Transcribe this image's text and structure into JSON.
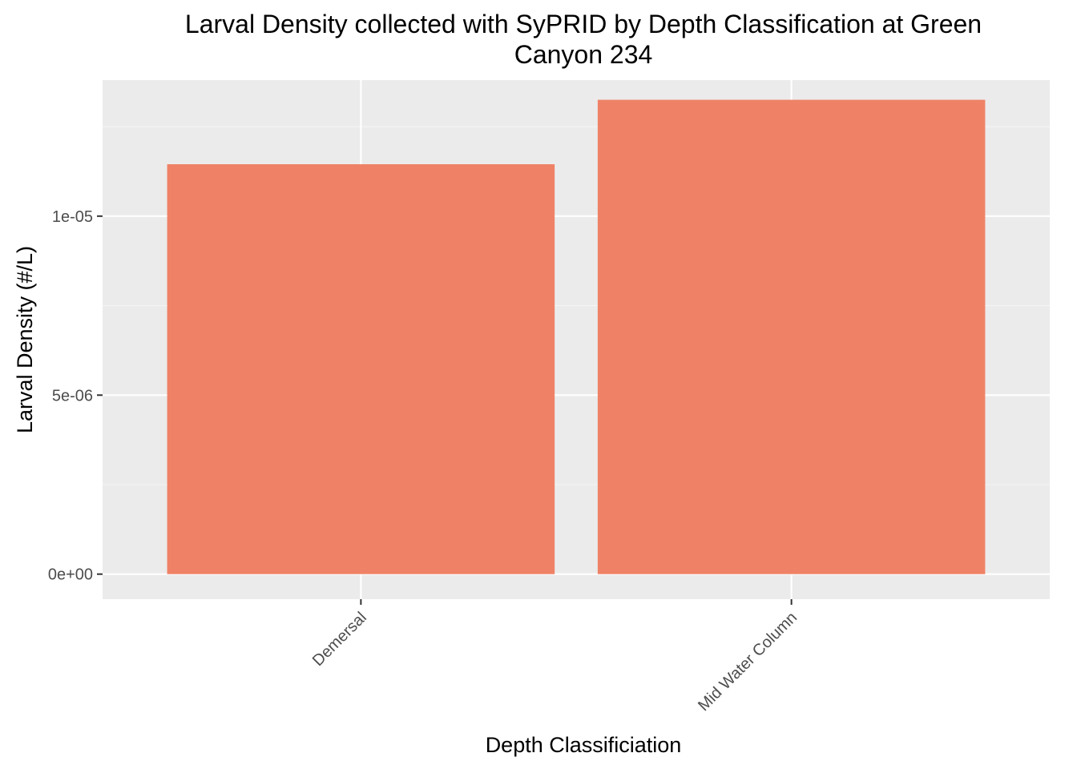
{
  "chart_data": {
    "type": "bar",
    "title_lines": [
      "Larval Density collected with SyPRID by Depth Classification at Green",
      "Canyon 234"
    ],
    "xlabel": "Depth Classificiation",
    "ylabel": "Larval Density (#/L)",
    "categories": [
      "Demersal",
      "Mid Water Column"
    ],
    "values": [
      1.145e-05,
      1.325e-05
    ],
    "ylim": [
      -7e-07,
      1.38e-05
    ],
    "yticks": [
      0,
      5e-06,
      1e-05
    ],
    "ytick_labels": [
      "0e+00",
      "5e-06",
      "1e-05"
    ],
    "grid": true,
    "legend": "none",
    "colors": {
      "bar_fill": "#ef8266",
      "panel_background": "#ebebeb",
      "grid_major": "#ffffff",
      "grid_minor": "#f5f5f5",
      "tick_text": "#4d4d4d",
      "tick_mark": "#333333"
    }
  }
}
